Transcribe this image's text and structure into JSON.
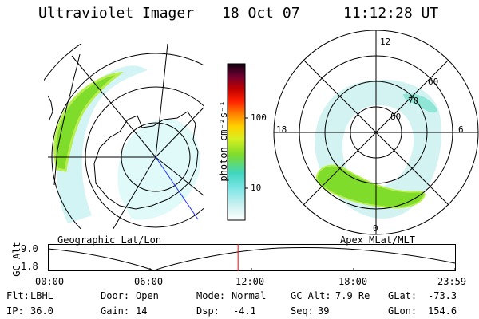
{
  "header": {
    "title": "Ultraviolet Imager",
    "date": "18 Oct 07",
    "time": "11:12:28 UT"
  },
  "colorbar": {
    "unit_label": "photon cm⁻²s⁻¹",
    "ticks": [
      "100",
      "10"
    ]
  },
  "left_map": {
    "caption": "Geographic Lat/Lon"
  },
  "right_map": {
    "caption": "Apex MLat/MLT",
    "mlt_labels": [
      "12",
      "18",
      "6",
      "0"
    ],
    "mlat_labels": [
      "60",
      "70",
      "80"
    ]
  },
  "altitude_plot": {
    "ylabel": "GC Alt",
    "yticks": [
      "9.0",
      "1.8"
    ],
    "xticks": [
      "00:00",
      "06:00",
      "12:00",
      "18:00",
      "23:59"
    ],
    "current_time_hours": 11.2
  },
  "status": {
    "flt_label": "Flt:",
    "flt_value": "LBHL",
    "ip_label": "IP:",
    "ip_value": "36.0",
    "door_label": "Door:",
    "door_value": "Open",
    "gain_label": "Gain:",
    "gain_value": "14",
    "mode_label": "Mode:",
    "mode_value": "Normal",
    "dsp_label": "Dsp:",
    "dsp_value": "-4.1",
    "gcalt_label": "GC Alt:",
    "gcalt_value": "7.9 Re",
    "seq_label": "Seq:",
    "seq_value": "39",
    "glat_label": "GLat:",
    "glat_value": "-73.3",
    "glon_label": "GLon:",
    "glon_value": "154.6"
  },
  "colors": {
    "auroral_green": "#7fdc2a",
    "auroral_cyan": "#7fe6e6",
    "marker_red": "#ff0000",
    "nadir_blue": "#2233ff"
  }
}
